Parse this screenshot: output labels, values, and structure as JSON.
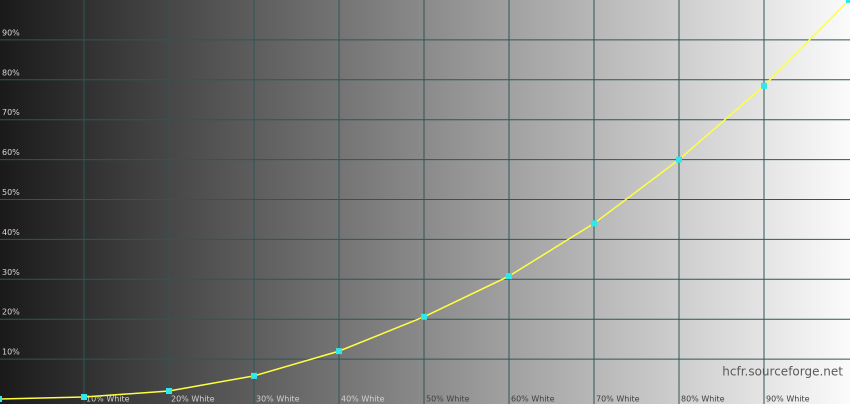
{
  "chart_data": {
    "type": "line",
    "x": [
      0,
      10,
      20,
      30,
      40,
      50,
      60,
      70,
      80,
      90,
      100
    ],
    "series": [
      {
        "values": [
          0,
          0.5,
          2,
          5.8,
          12,
          20.6,
          30.8,
          44,
          60,
          78.5,
          100
        ],
        "color": "#ffff40",
        "marker_color": "#30e8e8"
      }
    ],
    "xlim": [
      0,
      100
    ],
    "ylim": [
      0,
      100
    ],
    "xticks": [
      {
        "value": 10,
        "label": "10% White"
      },
      {
        "value": 20,
        "label": "20% White"
      },
      {
        "value": 30,
        "label": "30% White"
      },
      {
        "value": 40,
        "label": "40% White"
      },
      {
        "value": 50,
        "label": "50% White"
      },
      {
        "value": 60,
        "label": "60% White"
      },
      {
        "value": 70,
        "label": "70% White"
      },
      {
        "value": 80,
        "label": "80% White"
      },
      {
        "value": 90,
        "label": "90% White"
      }
    ],
    "yticks": [
      {
        "value": 10,
        "label": "10%"
      },
      {
        "value": 20,
        "label": "20%"
      },
      {
        "value": 30,
        "label": "30%"
      },
      {
        "value": 40,
        "label": "40%"
      },
      {
        "value": 50,
        "label": "50%"
      },
      {
        "value": 60,
        "label": "60%"
      },
      {
        "value": 70,
        "label": "70%"
      },
      {
        "value": 80,
        "label": "80%"
      },
      {
        "value": 90,
        "label": "90%"
      }
    ],
    "grid": true,
    "grid_color": "#2e5656",
    "watermark": "hcfr.sourceforge.net"
  }
}
